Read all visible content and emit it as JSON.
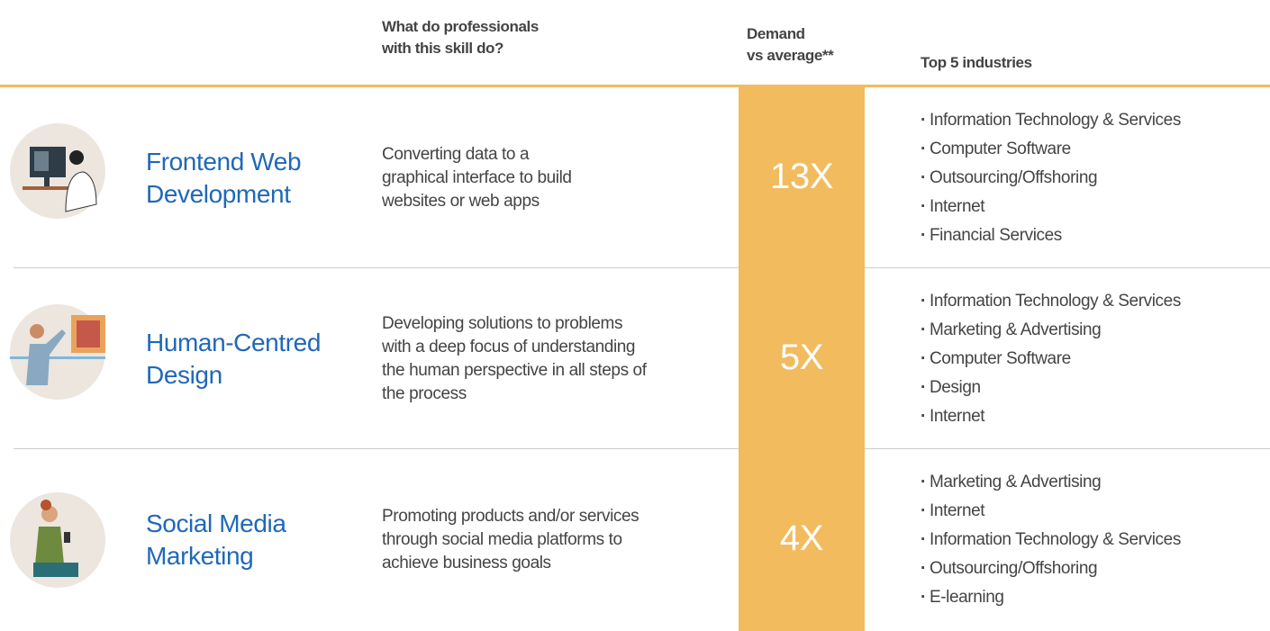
{
  "header": {
    "activity": [
      "What do professionals",
      "with this skill do?"
    ],
    "demand": [
      "Demand",
      "vs average**"
    ],
    "industries": "Top 5 industries"
  },
  "rows": [
    {
      "skill": [
        "Frontend Web",
        "Development"
      ],
      "description": [
        "Converting data to a",
        "graphical interface to build",
        "websites or web apps"
      ],
      "demand": "13X",
      "industries": [
        "Information Technology & Services",
        "Computer Software",
        "Outsourcing/Offshoring",
        "Internet",
        "Financial Services"
      ]
    },
    {
      "skill": [
        "Human-Centred",
        "Design"
      ],
      "description": [
        "Developing solutions to problems",
        "with a deep focus of understanding",
        "the human perspective in all steps of",
        "the process"
      ],
      "demand": "5X",
      "industries": [
        "Information Technology & Services",
        "Marketing & Advertising",
        "Computer Software",
        "Design",
        "Internet"
      ]
    },
    {
      "skill": [
        "Social Media",
        "Marketing"
      ],
      "description": [
        "Promoting products and/or services",
        "through social media platforms to",
        "achieve business goals"
      ],
      "demand": "4X",
      "industries": [
        "Marketing & Advertising",
        "Internet",
        "Information Technology & Services",
        "Outsourcing/Offshoring",
        "E-learning"
      ]
    }
  ]
}
